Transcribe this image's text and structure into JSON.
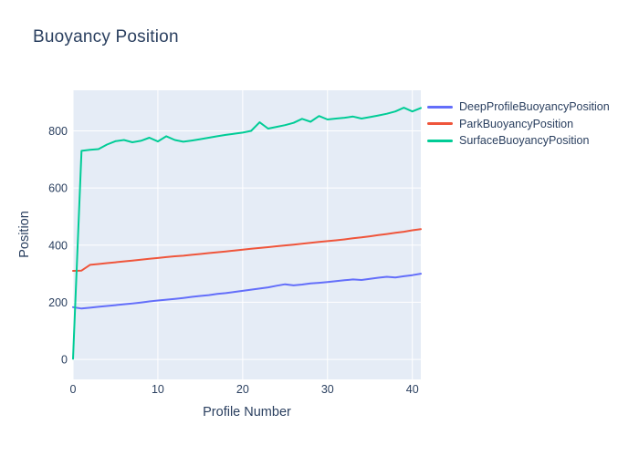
{
  "title": "Buoyancy Position",
  "colors": {
    "text": "#2a3f5f",
    "plot_background": "#e5ecf6",
    "gridline": "#ffffff",
    "page_background": "#ffffff"
  },
  "chart_data": {
    "type": "line",
    "title": "Buoyancy Position",
    "xlabel": "Profile Number",
    "ylabel": "Position",
    "x_ticks": [
      0,
      10,
      20,
      30,
      40
    ],
    "y_ticks": [
      0,
      200,
      400,
      600,
      800
    ],
    "x_range": [
      0,
      41
    ],
    "y_range": [
      -70,
      942
    ],
    "grid": true,
    "legend_position": "right",
    "x": [
      0,
      1,
      2,
      3,
      4,
      5,
      6,
      7,
      8,
      9,
      10,
      11,
      12,
      13,
      14,
      15,
      16,
      17,
      18,
      19,
      20,
      21,
      22,
      23,
      24,
      25,
      26,
      27,
      28,
      29,
      30,
      31,
      32,
      33,
      34,
      35,
      36,
      37,
      38,
      39,
      40,
      41
    ],
    "series": [
      {
        "name": "DeepProfileBuoyancyPosition",
        "color": "#636efa",
        "values": [
          183,
          178,
          181,
          184,
          187,
          190,
          193,
          196,
          199,
          203,
          206,
          209,
          212,
          215,
          219,
          222,
          225,
          229,
          232,
          236,
          240,
          244,
          248,
          252,
          258,
          263,
          259,
          262,
          266,
          268,
          271,
          274,
          277,
          280,
          278,
          282,
          286,
          289,
          287,
          291,
          295,
          300
        ]
      },
      {
        "name": "ParkBuoyancyPosition",
        "color": "#ef553b",
        "values": [
          310,
          311,
          331,
          334,
          337,
          340,
          343,
          346,
          349,
          352,
          355,
          358,
          361,
          363,
          366,
          369,
          372,
          375,
          378,
          381,
          384,
          387,
          390,
          393,
          396,
          399,
          402,
          405,
          408,
          411,
          414,
          417,
          420,
          424,
          427,
          431,
          435,
          439,
          443,
          447,
          452,
          456
        ]
      },
      {
        "name": "SurfaceBuoyancyPosition",
        "color": "#00cc96",
        "values": [
          2,
          730,
          734,
          736,
          752,
          764,
          768,
          760,
          765,
          776,
          763,
          781,
          768,
          762,
          766,
          771,
          776,
          781,
          786,
          790,
          794,
          800,
          830,
          808,
          814,
          820,
          828,
          842,
          832,
          852,
          840,
          843,
          846,
          850,
          843,
          848,
          854,
          860,
          868,
          881,
          868,
          880
        ]
      }
    ]
  }
}
